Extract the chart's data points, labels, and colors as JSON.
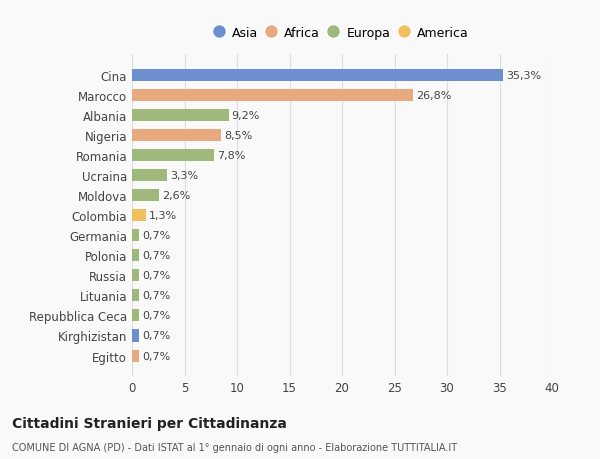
{
  "categories": [
    "Egitto",
    "Kirghizistan",
    "Repubblica Ceca",
    "Lituania",
    "Russia",
    "Polonia",
    "Germania",
    "Colombia",
    "Moldova",
    "Ucraina",
    "Romania",
    "Nigeria",
    "Albania",
    "Marocco",
    "Cina"
  ],
  "values": [
    0.7,
    0.7,
    0.7,
    0.7,
    0.7,
    0.7,
    0.7,
    1.3,
    2.6,
    3.3,
    7.8,
    8.5,
    9.2,
    26.8,
    35.3
  ],
  "labels": [
    "0,7%",
    "0,7%",
    "0,7%",
    "0,7%",
    "0,7%",
    "0,7%",
    "0,7%",
    "1,3%",
    "2,6%",
    "3,3%",
    "7,8%",
    "8,5%",
    "9,2%",
    "26,8%",
    "35,3%"
  ],
  "colors": [
    "#e8a97e",
    "#6e8fcf",
    "#9db87a",
    "#9db87a",
    "#9db87a",
    "#9db87a",
    "#9db87a",
    "#f0c060",
    "#9db87a",
    "#9db87a",
    "#9db87a",
    "#e8a97e",
    "#9db87a",
    "#e8a97e",
    "#6e8fcf"
  ],
  "legend_labels": [
    "Asia",
    "Africa",
    "Europa",
    "America"
  ],
  "legend_colors": [
    "#6e8fcf",
    "#e8a97e",
    "#9db87a",
    "#f0c060"
  ],
  "title": "Cittadini Stranieri per Cittadinanza",
  "subtitle": "COMUNE DI AGNA (PD) - Dati ISTAT al 1° gennaio di ogni anno - Elaborazione TUTTITALIA.IT",
  "xlim": [
    0,
    40
  ],
  "xticks": [
    0,
    5,
    10,
    15,
    20,
    25,
    30,
    35,
    40
  ],
  "bg_color": "#f9f9f9",
  "grid_color": "#dddddd",
  "text_color": "#444444"
}
